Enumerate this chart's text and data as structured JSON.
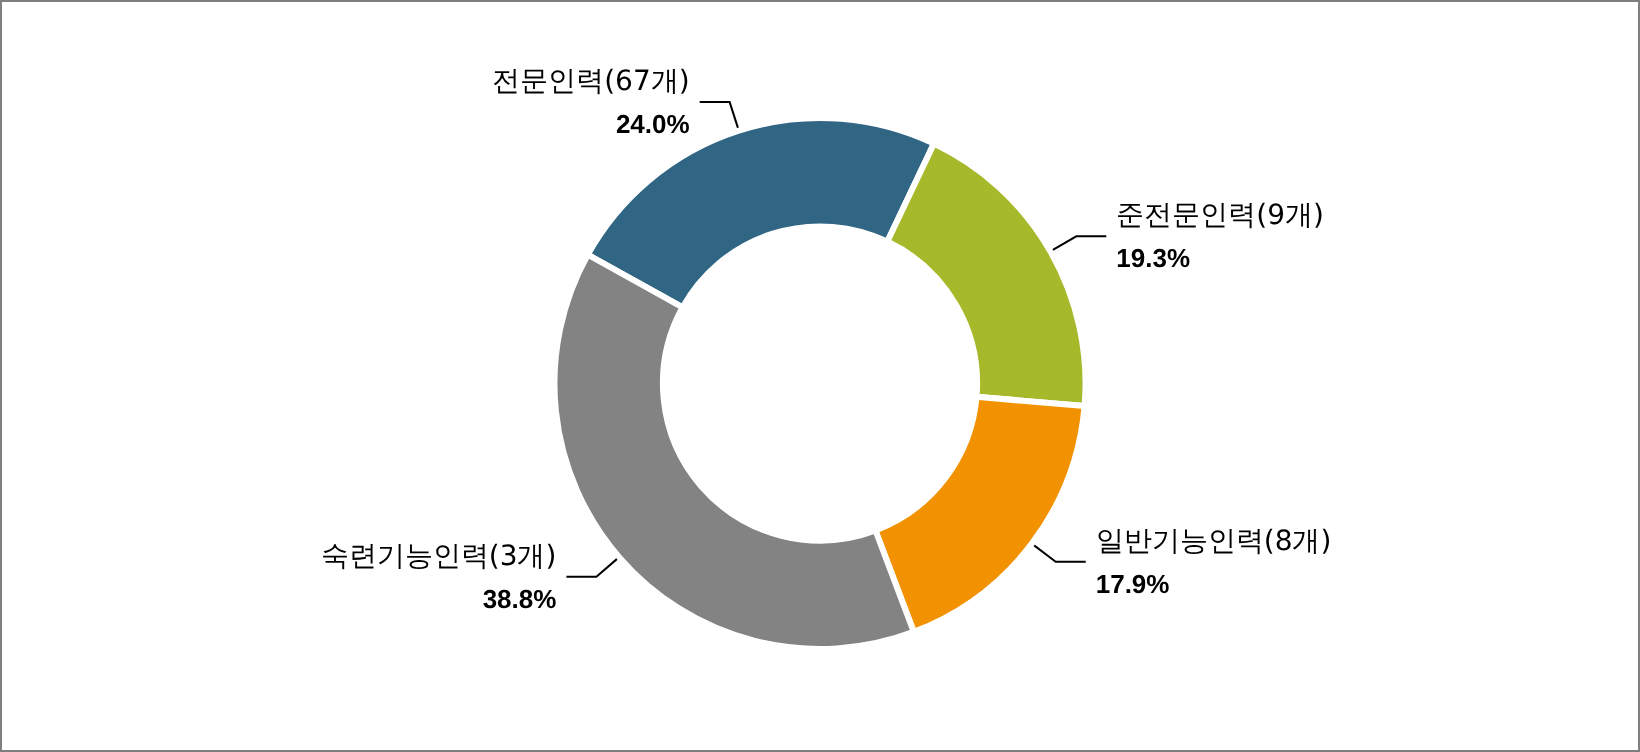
{
  "chart_data": {
    "type": "donut",
    "categories": [
      "전문인력(67개)",
      "준전문인력(9개)",
      "일반기능인력(8개)",
      "숙련기능인력(3개)"
    ],
    "values": [
      24.0,
      19.3,
      17.9,
      38.8
    ],
    "value_labels": [
      "24.0%",
      "19.3%",
      "17.9%",
      "38.8%"
    ],
    "colors": [
      "#306584",
      "#a6b92a",
      "#f39200",
      "#838383"
    ],
    "legend": false
  }
}
